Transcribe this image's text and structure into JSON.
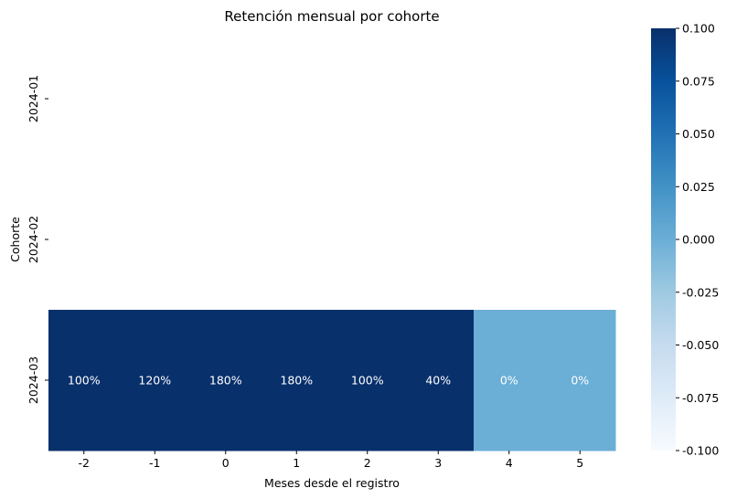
{
  "chart_data": {
    "type": "heatmap",
    "title": "Retención mensual por cohorte",
    "xlabel": "Meses desde el registro",
    "ylabel": "Cohorte",
    "x": [
      "-2",
      "-1",
      "0",
      "1",
      "2",
      "3",
      "4",
      "5"
    ],
    "y": [
      "2024-01",
      "2024-02",
      "2024-03"
    ],
    "values": [
      [
        null,
        null,
        null,
        null,
        null,
        null,
        null,
        null
      ],
      [
        null,
        null,
        null,
        null,
        null,
        null,
        null,
        null
      ],
      [
        1.0,
        1.2,
        1.8,
        1.8,
        1.0,
        0.4,
        0.0,
        0.0
      ]
    ],
    "annotations": [
      [
        "",
        "",
        "",
        "",
        "",
        "",
        "",
        ""
      ],
      [
        "",
        "",
        "",
        "",
        "",
        "",
        "",
        ""
      ],
      [
        "100%",
        "120%",
        "180%",
        "180%",
        "100%",
        "40%",
        "0%",
        "0%"
      ]
    ],
    "colormap": "Blues",
    "color_range": [
      -0.1,
      0.1
    ],
    "colorbar_ticks": [
      "0.100",
      "0.075",
      "0.050",
      "0.025",
      "0.000",
      "-0.025",
      "-0.050",
      "-0.075",
      "-0.100"
    ],
    "colorbar_tick_values": [
      0.1,
      0.075,
      0.05,
      0.025,
      0.0,
      -0.025,
      -0.05,
      -0.075,
      -0.1
    ],
    "colors": {
      "high": "#08306b",
      "mid": "#6baed6",
      "low": "#f7fbff",
      "annotation_text": "#ffffff"
    }
  }
}
